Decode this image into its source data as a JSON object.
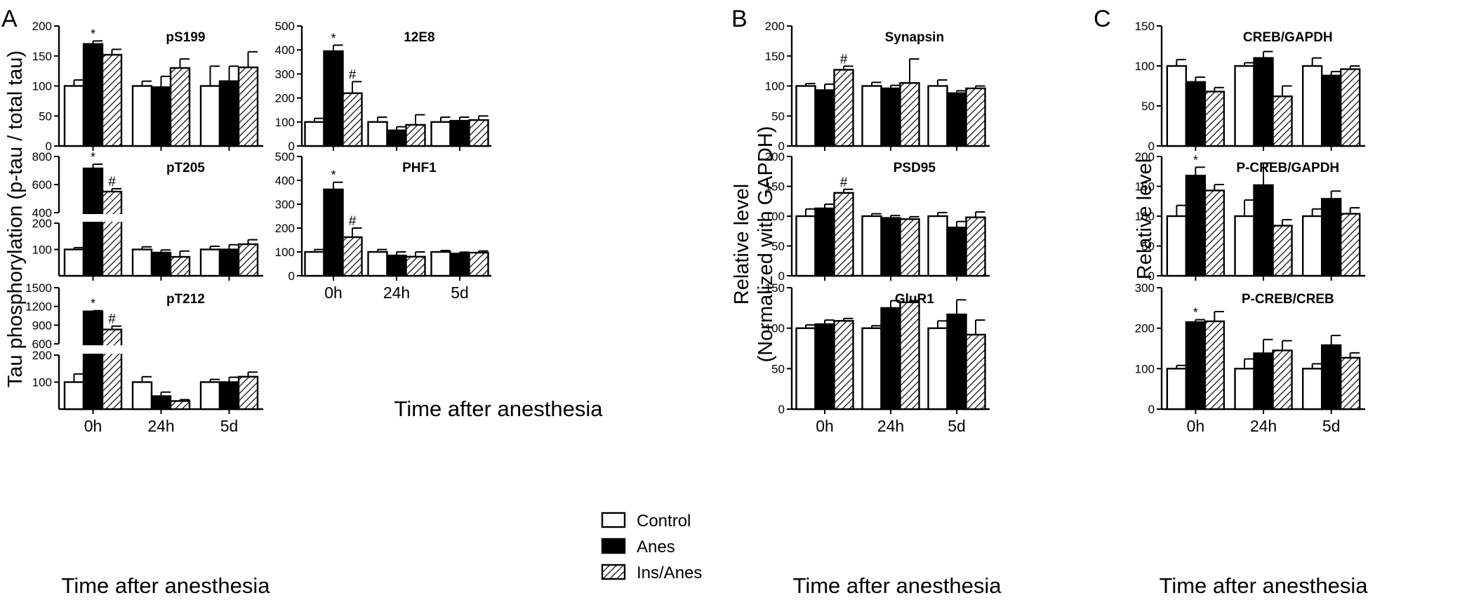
{
  "figure": {
    "legend": [
      {
        "label": "Control",
        "fill": "#ffffff"
      },
      {
        "label": "Anes",
        "fill": "#000000"
      },
      {
        "label": "Ins/Anes",
        "fill": "hatch"
      }
    ],
    "x_axis_title": "Time after anesthesia"
  },
  "panel_letters": {
    "A": "A",
    "B": "B",
    "C": "C"
  },
  "ylabels": {
    "A": "Tau phosphorylation (p-tau / total tau)",
    "B1": "Relative level",
    "B2": "(Normalized with GAPDH)",
    "C": "Relative level"
  },
  "chart_data": [
    {
      "type": "bar",
      "panel": "A",
      "title": "pS199",
      "categories": [
        "0h",
        "24h",
        "5d"
      ],
      "ylim": [
        0,
        200
      ],
      "yticks": [
        0,
        50,
        100,
        150,
        200
      ],
      "series": [
        {
          "name": "Control",
          "values": [
            100,
            100,
            100
          ],
          "errors": [
            10,
            8,
            33
          ]
        },
        {
          "name": "Anes",
          "values": [
            170,
            98,
            108
          ],
          "errors": [
            5,
            18,
            25
          ]
        },
        {
          "name": "Ins/Anes",
          "values": [
            152,
            130,
            131
          ],
          "errors": [
            9,
            15,
            26
          ]
        }
      ],
      "annotations": [
        {
          "category": "0h",
          "series": "Anes",
          "text": "*"
        }
      ]
    },
    {
      "type": "bar",
      "panel": "A",
      "title": "pT205",
      "categories": [
        "0h",
        "24h",
        "5d"
      ],
      "ylim": [
        0,
        800
      ],
      "axis_break": [
        200,
        400
      ],
      "yticks": [
        100,
        200,
        400,
        600,
        800
      ],
      "series": [
        {
          "name": "Control",
          "values": [
            100,
            100,
            100
          ],
          "errors": [
            7,
            10,
            12
          ]
        },
        {
          "name": "Anes",
          "values": [
            715,
            88,
            100
          ],
          "errors": [
            30,
            10,
            18
          ]
        },
        {
          "name": "Ins/Anes",
          "values": [
            550,
            72,
            120
          ],
          "errors": [
            20,
            22,
            17
          ]
        }
      ],
      "annotations": [
        {
          "category": "0h",
          "series": "Anes",
          "text": "*"
        },
        {
          "category": "0h",
          "series": "Ins/Anes",
          "text": "#"
        }
      ]
    },
    {
      "type": "bar",
      "panel": "A",
      "title": "pT212",
      "categories": [
        "0h",
        "24h",
        "5d"
      ],
      "ylim": [
        0,
        1500
      ],
      "axis_break": [
        200,
        600
      ],
      "yticks": [
        100,
        200,
        600,
        900,
        1200,
        1500
      ],
      "series": [
        {
          "name": "Control",
          "values": [
            100,
            100,
            100
          ],
          "errors": [
            30,
            20,
            10
          ]
        },
        {
          "name": "Anes",
          "values": [
            1120,
            48,
            100
          ],
          "errors": [
            12,
            15,
            18
          ]
        },
        {
          "name": "Ins/Anes",
          "values": [
            830,
            30,
            120
          ],
          "errors": [
            55,
            5,
            17
          ]
        }
      ],
      "annotations": [
        {
          "category": "0h",
          "series": "Anes",
          "text": "*"
        },
        {
          "category": "0h",
          "series": "Ins/Anes",
          "text": "#"
        }
      ]
    },
    {
      "type": "bar",
      "panel": "A",
      "title": "12E8",
      "categories": [
        "0h",
        "24h",
        "5d"
      ],
      "ylim": [
        0,
        500
      ],
      "yticks": [
        0,
        100,
        200,
        300,
        400,
        500
      ],
      "series": [
        {
          "name": "Control",
          "values": [
            100,
            100,
            100
          ],
          "errors": [
            15,
            20,
            20
          ]
        },
        {
          "name": "Anes",
          "values": [
            395,
            65,
            105
          ],
          "errors": [
            25,
            15,
            15
          ]
        },
        {
          "name": "Ins/Anes",
          "values": [
            220,
            88,
            108
          ],
          "errors": [
            48,
            42,
            17
          ]
        }
      ],
      "annotations": [
        {
          "category": "0h",
          "series": "Anes",
          "text": "*"
        },
        {
          "category": "0h",
          "series": "Ins/Anes",
          "text": "#"
        }
      ]
    },
    {
      "type": "bar",
      "panel": "A",
      "title": "PHF1",
      "categories": [
        "0h",
        "24h",
        "5d"
      ],
      "ylim": [
        0,
        500
      ],
      "yticks": [
        0,
        100,
        200,
        300,
        400,
        500
      ],
      "series": [
        {
          "name": "Control",
          "values": [
            100,
            100,
            100
          ],
          "errors": [
            10,
            10,
            6
          ]
        },
        {
          "name": "Anes",
          "values": [
            362,
            85,
            93
          ],
          "errors": [
            30,
            15,
            6
          ]
        },
        {
          "name": "Ins/Anes",
          "values": [
            162,
            80,
            97
          ],
          "errors": [
            38,
            20,
            7
          ]
        }
      ],
      "annotations": [
        {
          "category": "0h",
          "series": "Anes",
          "text": "*"
        },
        {
          "category": "0h",
          "series": "Ins/Anes",
          "text": "#"
        }
      ]
    },
    {
      "type": "bar",
      "panel": "B",
      "title": "Synapsin",
      "categories": [
        "0h",
        "24h",
        "5d"
      ],
      "ylim": [
        0,
        200
      ],
      "yticks": [
        0,
        50,
        100,
        150,
        200
      ],
      "series": [
        {
          "name": "Control",
          "values": [
            100,
            100,
            100
          ],
          "errors": [
            4,
            6,
            10
          ]
        },
        {
          "name": "Anes",
          "values": [
            93,
            96,
            88
          ],
          "errors": [
            10,
            5,
            4
          ]
        },
        {
          "name": "Ins/Anes",
          "values": [
            127,
            105,
            96
          ],
          "errors": [
            6,
            40,
            4
          ]
        }
      ],
      "annotations": [
        {
          "category": "0h",
          "series": "Ins/Anes",
          "text": "#"
        }
      ]
    },
    {
      "type": "bar",
      "panel": "B",
      "title": "PSD95",
      "categories": [
        "0h",
        "24h",
        "5d"
      ],
      "ylim": [
        0,
        200
      ],
      "yticks": [
        0,
        50,
        100,
        150,
        200
      ],
      "series": [
        {
          "name": "Control",
          "values": [
            100,
            100,
            100
          ],
          "errors": [
            12,
            4,
            6
          ]
        },
        {
          "name": "Anes",
          "values": [
            113,
            97,
            81
          ],
          "errors": [
            7,
            4,
            10
          ]
        },
        {
          "name": "Ins/Anes",
          "values": [
            139,
            95,
            98
          ],
          "errors": [
            6,
            4,
            9
          ]
        }
      ],
      "annotations": [
        {
          "category": "0h",
          "series": "Ins/Anes",
          "text": "#"
        }
      ]
    },
    {
      "type": "bar",
      "panel": "B",
      "title": "GluR1",
      "categories": [
        "0h",
        "24h",
        "5d"
      ],
      "ylim": [
        0,
        150
      ],
      "yticks": [
        0,
        50,
        100,
        150
      ],
      "series": [
        {
          "name": "Control",
          "values": [
            100,
            100,
            100
          ],
          "errors": [
            4,
            3,
            9
          ]
        },
        {
          "name": "Anes",
          "values": [
            105,
            125,
            117
          ],
          "errors": [
            5,
            9,
            18
          ]
        },
        {
          "name": "Ins/Anes",
          "values": [
            109,
            132,
            92
          ],
          "errors": [
            3,
            2,
            18
          ]
        }
      ],
      "annotations": []
    },
    {
      "type": "bar",
      "panel": "C",
      "title": "CREB/GAPDH",
      "categories": [
        "0h",
        "24h",
        "5d"
      ],
      "ylim": [
        0,
        150
      ],
      "yticks": [
        0,
        50,
        100,
        150
      ],
      "series": [
        {
          "name": "Control",
          "values": [
            100,
            100,
            100
          ],
          "errors": [
            8,
            4,
            10
          ]
        },
        {
          "name": "Anes",
          "values": [
            80,
            110,
            88
          ],
          "errors": [
            6,
            8,
            5
          ]
        },
        {
          "name": "Ins/Anes",
          "values": [
            68,
            62,
            96
          ],
          "errors": [
            5,
            13,
            4
          ]
        }
      ],
      "annotations": []
    },
    {
      "type": "bar",
      "panel": "C",
      "title": "P-CREB/GAPDH",
      "categories": [
        "0h",
        "24h",
        "5d"
      ],
      "ylim": [
        0,
        200
      ],
      "yticks": [
        0,
        50,
        100,
        150,
        200
      ],
      "series": [
        {
          "name": "Control",
          "values": [
            100,
            100,
            100
          ],
          "errors": [
            18,
            27,
            12
          ]
        },
        {
          "name": "Anes",
          "values": [
            168,
            152,
            129
          ],
          "errors": [
            14,
            37,
            13
          ]
        },
        {
          "name": "Ins/Anes",
          "values": [
            143,
            84,
            104
          ],
          "errors": [
            10,
            10,
            10
          ]
        }
      ],
      "annotations": [
        {
          "category": "0h",
          "series": "Anes",
          "text": "*"
        }
      ]
    },
    {
      "type": "bar",
      "panel": "C",
      "title": "P-CREB/CREB",
      "categories": [
        "0h",
        "24h",
        "5d"
      ],
      "ylim": [
        0,
        300
      ],
      "yticks": [
        0,
        100,
        200,
        300
      ],
      "series": [
        {
          "name": "Control",
          "values": [
            100,
            100,
            100
          ],
          "errors": [
            8,
            24,
            12
          ]
        },
        {
          "name": "Anes",
          "values": [
            215,
            138,
            158
          ],
          "errors": [
            6,
            34,
            24
          ]
        },
        {
          "name": "Ins/Anes",
          "values": [
            217,
            145,
            127
          ],
          "errors": [
            24,
            24,
            12
          ]
        }
      ],
      "annotations": [
        {
          "category": "0h",
          "series": "Anes",
          "text": "*"
        }
      ]
    }
  ]
}
